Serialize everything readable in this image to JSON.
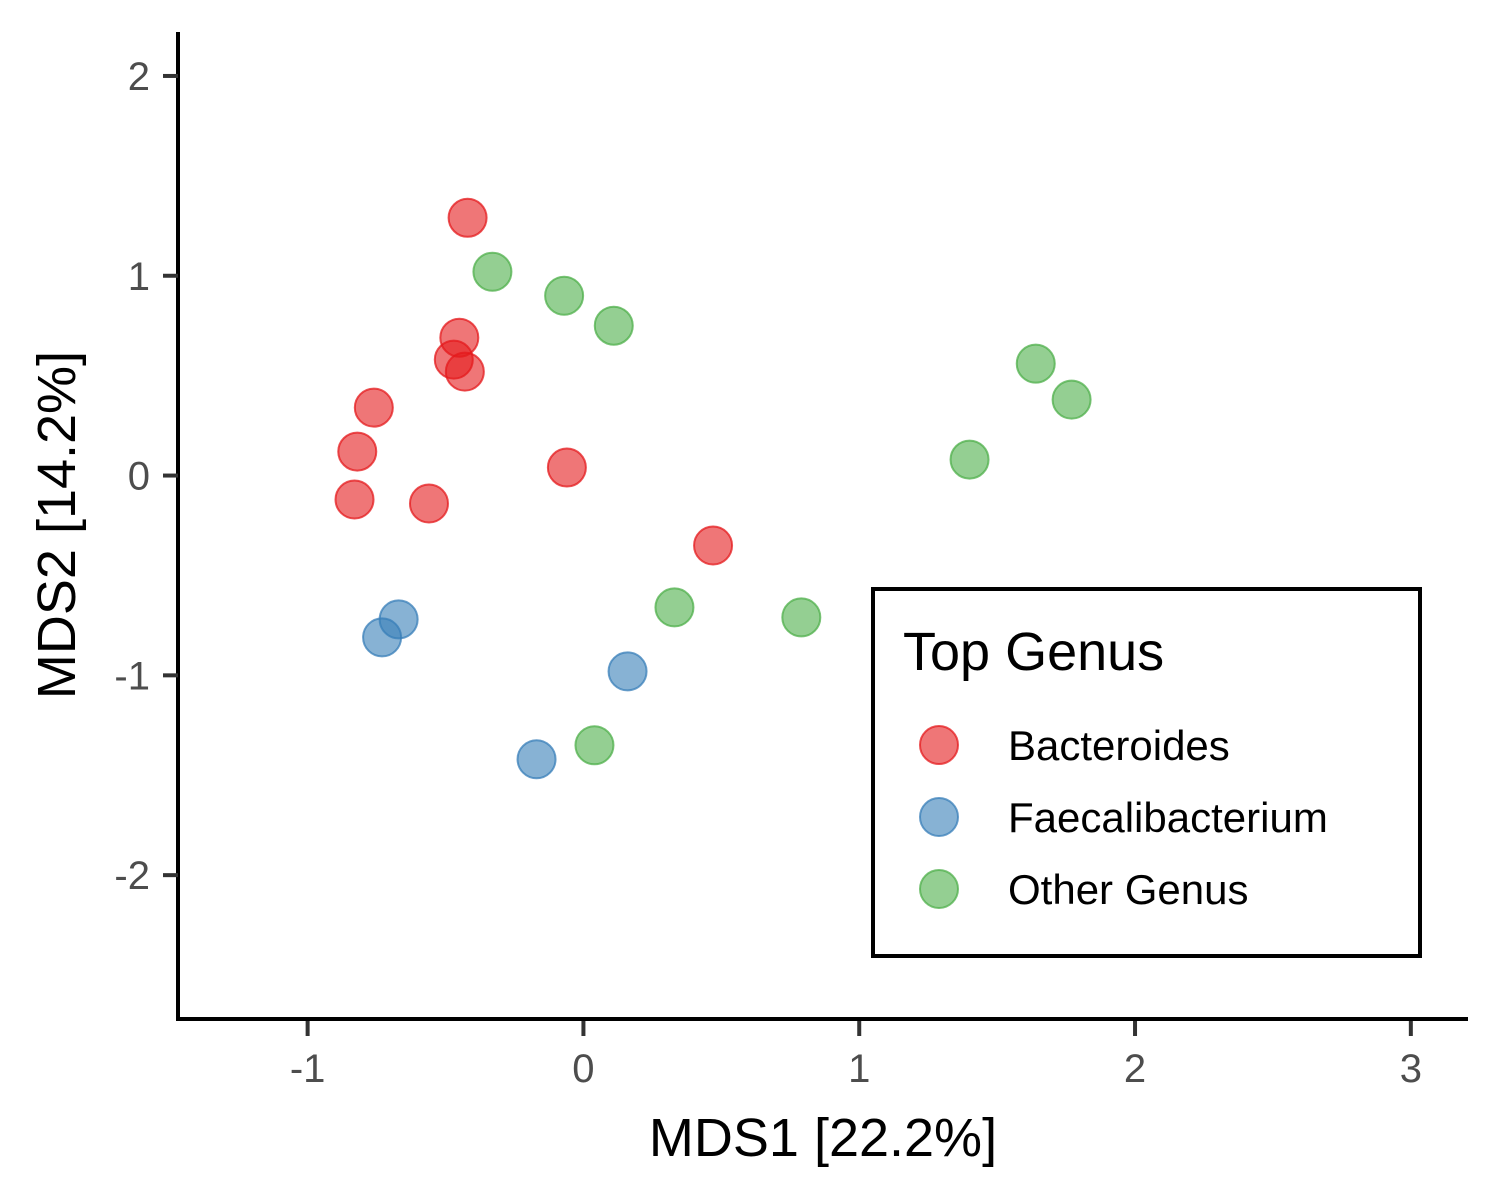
{
  "chart_data": {
    "type": "scatter",
    "title": "",
    "xlabel": "MDS1 [22.2%]",
    "ylabel": "MDS2 [14.2%]",
    "xlim": [
      -1.47,
      3.2
    ],
    "ylim": [
      -2.72,
      2.22
    ],
    "x_ticks": [
      -1,
      0,
      1,
      2,
      3
    ],
    "y_ticks": [
      -2,
      -1,
      0,
      1,
      2
    ],
    "x_tick_labels": [
      "-1",
      "0",
      "1",
      "2",
      "3"
    ],
    "y_tick_labels": [
      "-2",
      "-1",
      "0",
      "1",
      "2"
    ],
    "grid": false,
    "legend": {
      "title": "Top Genus",
      "position": "bottom-right"
    },
    "series": [
      {
        "name": "Bacteroides",
        "color": "#E41A1C",
        "points": [
          [
            -0.42,
            1.29
          ],
          [
            -0.45,
            0.69
          ],
          [
            -0.47,
            0.58
          ],
          [
            -0.43,
            0.52
          ],
          [
            -0.76,
            0.34
          ],
          [
            -0.82,
            0.12
          ],
          [
            -0.83,
            -0.12
          ],
          [
            -0.56,
            -0.14
          ],
          [
            -0.06,
            0.04
          ],
          [
            0.47,
            -0.35
          ]
        ]
      },
      {
        "name": "Faecalibacterium",
        "color": "#377EB8",
        "points": [
          [
            -0.67,
            -0.72
          ],
          [
            -0.73,
            -0.81
          ],
          [
            0.16,
            -0.98
          ],
          [
            -0.17,
            -1.42
          ]
        ]
      },
      {
        "name": "Other Genus",
        "color": "#4DAF4A",
        "points": [
          [
            -0.33,
            1.02
          ],
          [
            -0.07,
            0.9
          ],
          [
            0.11,
            0.75
          ],
          [
            1.64,
            0.56
          ],
          [
            1.77,
            0.38
          ],
          [
            1.4,
            0.08
          ],
          [
            0.33,
            -0.66
          ],
          [
            0.79,
            -0.71
          ],
          [
            0.04,
            -1.35
          ]
        ]
      }
    ]
  }
}
